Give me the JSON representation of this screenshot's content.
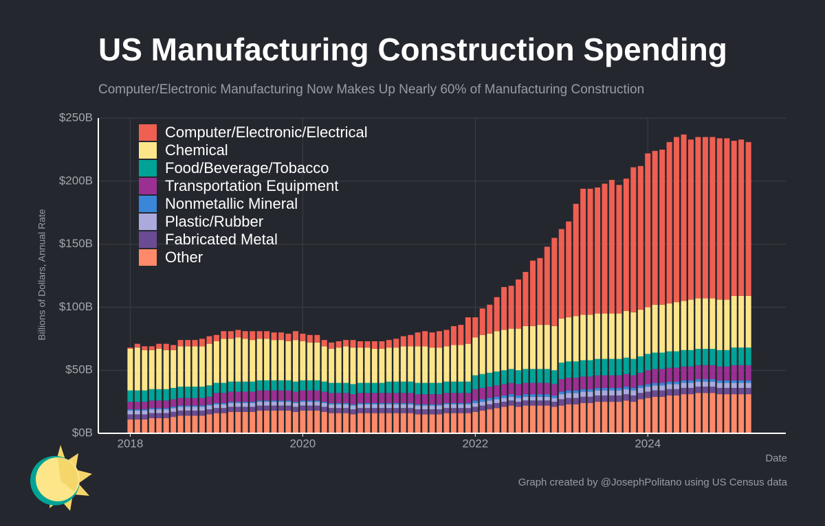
{
  "chart_data": {
    "type": "stacked-bar",
    "title": "US Manufacturing Construction Spending",
    "subtitle": "Computer/Electronic Manufacturing Now Makes Up Nearly 60% of Manufacturing Construction",
    "y_label": "Billions of Dollars, Annual Rate",
    "x_label": "Date",
    "credit": "Graph created by @JosephPolitano using US Census data",
    "legend": "top-left",
    "grid": true,
    "xlim": [
      2017.63,
      2025.6
    ],
    "xticks": [
      2018,
      2020,
      2022,
      2024
    ],
    "ylim": [
      0,
      250
    ],
    "yticks": [
      {
        "value": 0,
        "label": "$0B"
      },
      {
        "value": 50,
        "label": "$50B"
      },
      {
        "value": 100,
        "label": "$100B"
      },
      {
        "value": 150,
        "label": "$150B"
      },
      {
        "value": 200,
        "label": "$200B"
      },
      {
        "value": 250,
        "label": "$250B"
      }
    ],
    "x": [
      2018,
      2018.083,
      2018.167,
      2018.25,
      2018.333,
      2018.417,
      2018.5,
      2018.583,
      2018.667,
      2018.75,
      2018.833,
      2018.917,
      2019,
      2019.083,
      2019.167,
      2019.25,
      2019.333,
      2019.417,
      2019.5,
      2019.583,
      2019.667,
      2019.75,
      2019.833,
      2019.917,
      2020,
      2020.083,
      2020.167,
      2020.25,
      2020.333,
      2020.417,
      2020.5,
      2020.583,
      2020.667,
      2020.75,
      2020.833,
      2020.917,
      2021,
      2021.083,
      2021.167,
      2021.25,
      2021.333,
      2021.417,
      2021.5,
      2021.583,
      2021.667,
      2021.75,
      2021.833,
      2021.917,
      2022,
      2022.083,
      2022.167,
      2022.25,
      2022.333,
      2022.417,
      2022.5,
      2022.583,
      2022.667,
      2022.75,
      2022.833,
      2022.917,
      2023,
      2023.083,
      2023.167,
      2023.25,
      2023.333,
      2023.417,
      2023.5,
      2023.583,
      2023.667,
      2023.75,
      2023.833,
      2023.917,
      2024,
      2024.083,
      2024.167,
      2024.25,
      2024.333,
      2024.417,
      2024.5,
      2024.583,
      2024.667,
      2024.75,
      2024.833,
      2024.917,
      2025,
      2025.083,
      2025.167
    ],
    "series": [
      {
        "name": "Computer/Electronic/Electrical",
        "color": "#ef5f52",
        "values": [
          1,
          3,
          3,
          3,
          4,
          5,
          4,
          5,
          5,
          5,
          6,
          6,
          5,
          6,
          6,
          6,
          6,
          7,
          6,
          6,
          6,
          6,
          6,
          7,
          6,
          6,
          6,
          5,
          5,
          5,
          5,
          6,
          5,
          5,
          6,
          6,
          6,
          7,
          8,
          9,
          11,
          12,
          12,
          13,
          13,
          15,
          16,
          21,
          16,
          21,
          23,
          27,
          34,
          34,
          39,
          43,
          52,
          53,
          62,
          70,
          71,
          76,
          89,
          100,
          100,
          100,
          103,
          106,
          102,
          105,
          115,
          114,
          122,
          122,
          123,
          128,
          131,
          132,
          127,
          128,
          128,
          128,
          128,
          128,
          123,
          124,
          122
        ]
      },
      {
        "name": "Chemical",
        "color": "#fde68a",
        "values": [
          33,
          34,
          32,
          31,
          32,
          31,
          30,
          32,
          32,
          32,
          32,
          33,
          33,
          35,
          34,
          35,
          34,
          33,
          33,
          33,
          32,
          32,
          31,
          33,
          31,
          30,
          30,
          28,
          27,
          28,
          29,
          29,
          28,
          28,
          27,
          27,
          27,
          27,
          28,
          28,
          29,
          29,
          28,
          28,
          28,
          29,
          29,
          30,
          30,
          31,
          31,
          32,
          32,
          32,
          33,
          34,
          34,
          35,
          35,
          35,
          35,
          35,
          36,
          36,
          36,
          36,
          36,
          36,
          36,
          37,
          37,
          37,
          37,
          38,
          38,
          38,
          39,
          39,
          40,
          40,
          40,
          40,
          40,
          40,
          41,
          41,
          41
        ]
      },
      {
        "name": "Food/Beverage/Tobacco",
        "color": "#00a396",
        "values": [
          9,
          9,
          9,
          9,
          9,
          9,
          9,
          9,
          9,
          9,
          9,
          9,
          8,
          8,
          8,
          8,
          8,
          8,
          8,
          8,
          8,
          8,
          8,
          8,
          8,
          8,
          8,
          8,
          8,
          8,
          8,
          8,
          8,
          8,
          8,
          8,
          9,
          9,
          9,
          9,
          9,
          9,
          9,
          9,
          9,
          9,
          9,
          9,
          11,
          11,
          11,
          11,
          11,
          11,
          11,
          11,
          11,
          11,
          11,
          11,
          13,
          13,
          13,
          13,
          13,
          13,
          13,
          13,
          13,
          13,
          13,
          13,
          13,
          13,
          13,
          13,
          13,
          13,
          13,
          13,
          13,
          13,
          13,
          13,
          14,
          14,
          14
        ]
      },
      {
        "name": "Transportation Equipment",
        "color": "#9b2f92",
        "values": [
          6,
          6,
          6,
          6,
          6,
          6,
          6,
          6,
          6,
          6,
          6,
          6,
          8,
          8,
          8,
          8,
          8,
          8,
          8,
          8,
          8,
          8,
          8,
          8,
          8,
          8,
          8,
          8,
          8,
          8,
          8,
          8,
          8,
          8,
          8,
          8,
          8,
          8,
          8,
          8,
          8,
          8,
          8,
          8,
          8,
          8,
          8,
          8,
          9,
          9,
          9,
          9,
          9,
          9,
          9,
          9,
          9,
          9,
          9,
          9,
          10,
          10,
          10,
          10,
          10,
          10,
          10,
          10,
          10,
          10,
          10,
          10,
          11,
          11,
          11,
          11,
          11,
          11,
          11,
          11,
          11,
          11,
          11,
          11,
          12,
          12,
          12
        ]
      },
      {
        "name": "Nonmetallic Mineral",
        "color": "#3a86d8",
        "values": [
          1,
          1,
          1,
          1,
          1,
          1,
          1,
          1,
          1,
          1,
          1,
          1,
          1,
          1,
          1,
          1,
          1,
          1,
          1,
          1,
          1,
          1,
          1,
          1,
          1,
          1,
          1,
          1,
          1,
          1,
          1,
          1,
          1,
          1,
          1,
          1,
          1,
          1,
          1,
          1,
          1,
          1,
          1,
          1,
          1,
          1,
          1,
          1,
          2,
          2,
          2,
          2,
          2,
          2,
          2,
          2,
          2,
          2,
          2,
          2,
          2,
          2,
          2,
          2,
          2,
          2,
          2,
          2,
          2,
          2,
          2,
          2,
          2,
          2,
          2,
          2,
          2,
          2,
          2,
          2,
          2,
          2,
          2,
          2,
          2,
          2,
          2
        ]
      },
      {
        "name": "Plastic/Rubber",
        "color": "#aaaadc",
        "values": [
          3,
          3,
          3,
          3,
          3,
          3,
          3,
          3,
          3,
          3,
          3,
          3,
          3,
          3,
          3,
          3,
          3,
          3,
          3,
          3,
          3,
          3,
          3,
          3,
          3,
          3,
          3,
          3,
          3,
          3,
          3,
          3,
          3,
          3,
          3,
          3,
          3,
          3,
          3,
          3,
          3,
          3,
          3,
          3,
          3,
          3,
          3,
          3,
          3,
          3,
          3,
          3,
          3,
          3,
          3,
          3,
          3,
          3,
          3,
          3,
          4,
          4,
          4,
          4,
          4,
          4,
          4,
          4,
          4,
          4,
          4,
          4,
          4,
          4,
          4,
          4,
          4,
          4,
          4,
          4,
          4,
          4,
          4,
          4,
          4,
          4,
          4
        ]
      },
      {
        "name": "Fabricated Metal",
        "color": "#6b4b93",
        "values": [
          4,
          4,
          4,
          4,
          4,
          4,
          4,
          4,
          4,
          4,
          4,
          4,
          4,
          4,
          4,
          4,
          4,
          4,
          4,
          4,
          4,
          4,
          4,
          4,
          4,
          4,
          4,
          4,
          4,
          4,
          4,
          4,
          4,
          4,
          4,
          4,
          4,
          4,
          4,
          4,
          4,
          4,
          4,
          4,
          4,
          4,
          4,
          4,
          4,
          4,
          4,
          4,
          4,
          4,
          4,
          4,
          4,
          4,
          4,
          4,
          5,
          5,
          5,
          5,
          5,
          5,
          5,
          5,
          5,
          5,
          5,
          5,
          5,
          5,
          5,
          5,
          5,
          5,
          5,
          5,
          5,
          5,
          5,
          5,
          5,
          5,
          5
        ]
      },
      {
        "name": "Other",
        "color": "#ff8a6a",
        "values": [
          11,
          11,
          11,
          12,
          12,
          12,
          13,
          14,
          14,
          14,
          14,
          15,
          16,
          16,
          17,
          17,
          17,
          17,
          18,
          18,
          18,
          18,
          18,
          17,
          18,
          18,
          18,
          17,
          16,
          16,
          16,
          15,
          16,
          16,
          16,
          16,
          16,
          16,
          16,
          16,
          15,
          15,
          15,
          15,
          16,
          16,
          16,
          16,
          17,
          18,
          19,
          20,
          21,
          22,
          21,
          22,
          22,
          22,
          22,
          21,
          22,
          23,
          23,
          24,
          24,
          25,
          25,
          25,
          25,
          26,
          25,
          27,
          28,
          29,
          29,
          30,
          30,
          31,
          31,
          32,
          32,
          32,
          31,
          31,
          31,
          31,
          31
        ]
      }
    ]
  }
}
